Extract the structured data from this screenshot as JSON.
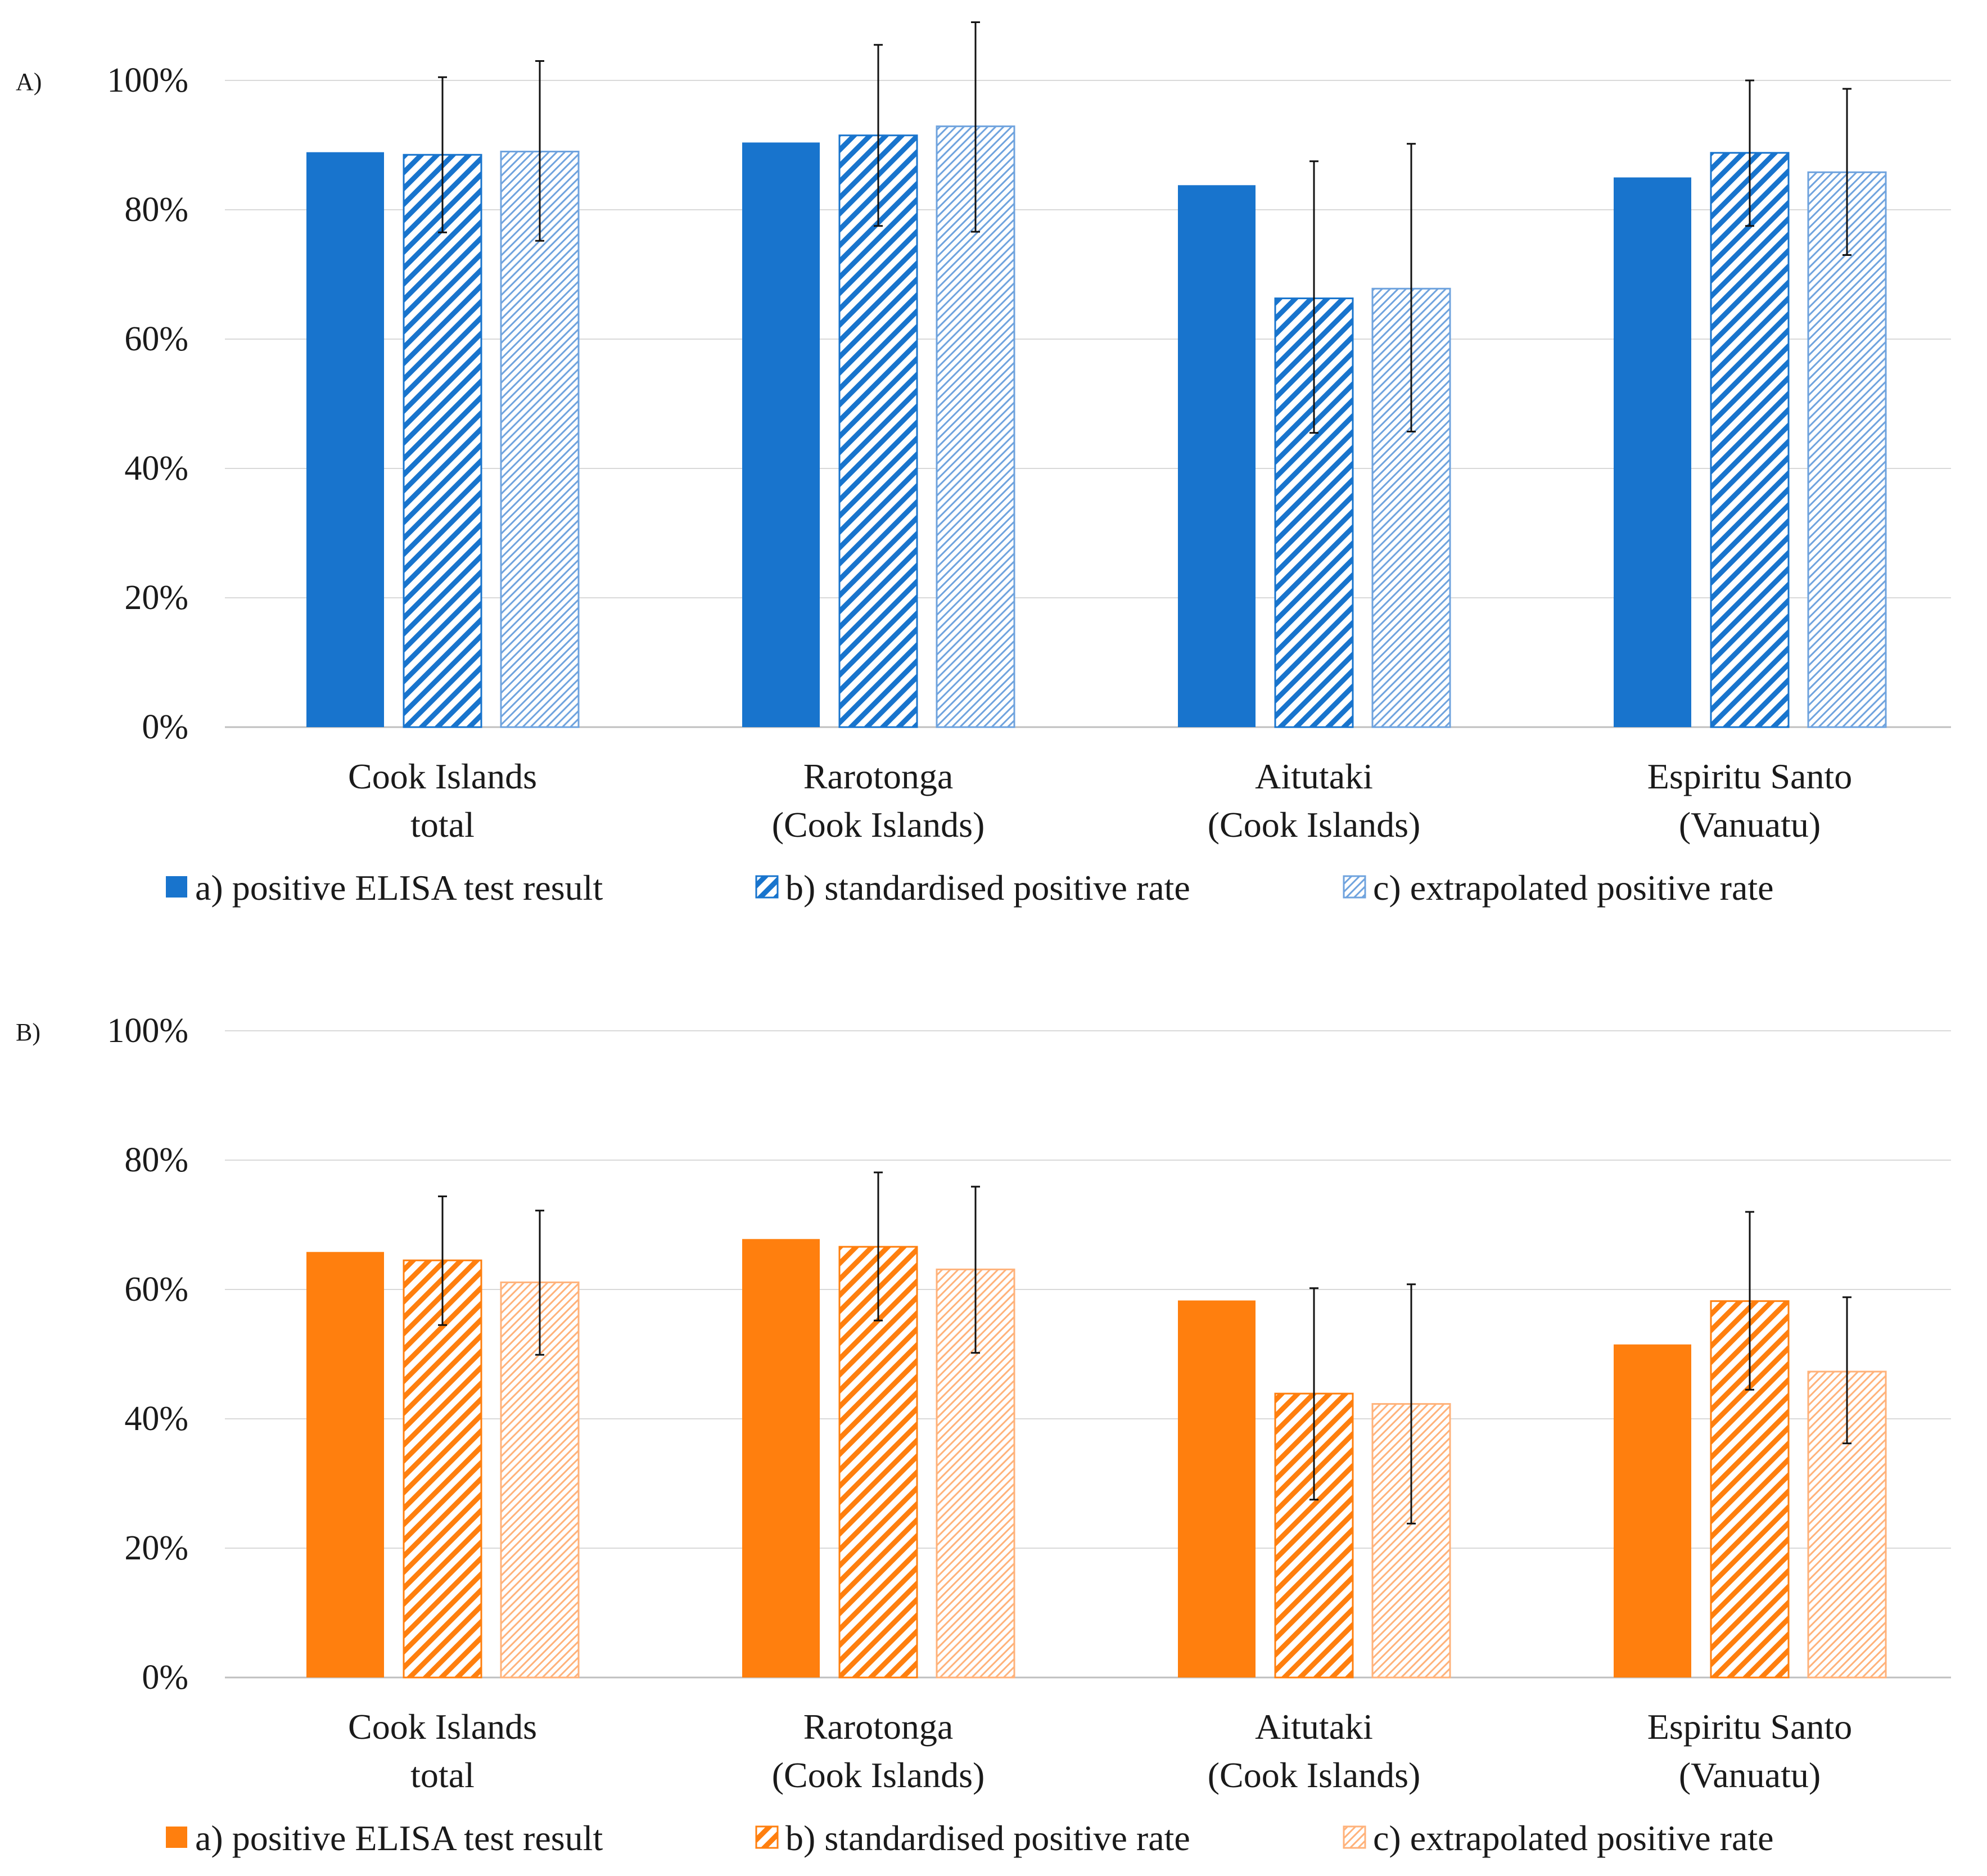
{
  "chart_data": [
    {
      "panel": "A)",
      "type": "bar",
      "title": "",
      "xlabel": "",
      "ylabel": "",
      "ylim": [
        0,
        100
      ],
      "yticks": [
        "0%",
        "20%",
        "40%",
        "60%",
        "80%",
        "100%"
      ],
      "categories": [
        [
          "Cook Islands",
          "total"
        ],
        [
          "Rarotonga",
          "(Cook Islands)"
        ],
        [
          "Aitutaki",
          "(Cook Islands)"
        ],
        [
          "Espiritu Santo",
          "(Vanuatu)"
        ]
      ],
      "series": [
        {
          "name": "a) positive ELISA test result",
          "pattern": "solid",
          "values": [
            88.9,
            90.4,
            83.8,
            85.0
          ],
          "err_low": null,
          "err_high": null
        },
        {
          "name": "b) standardised positive rate",
          "pattern": "wide-hatch",
          "values": [
            88.5,
            91.5,
            66.3,
            88.8
          ],
          "err_low": [
            76.5,
            77.5,
            45.5,
            77.5
          ],
          "err_high": [
            100.5,
            105.5,
            87.5,
            100.0
          ]
        },
        {
          "name": "c) extrapolated positive rate",
          "pattern": "fine-hatch",
          "values": [
            89.0,
            92.9,
            67.8,
            85.8
          ],
          "err_low": [
            75.2,
            76.6,
            45.7,
            73.0
          ],
          "err_high": [
            103.0,
            109.0,
            90.2,
            98.7
          ]
        }
      ],
      "colors": {
        "solid": "#1874cd",
        "hatch": "#1874cd",
        "fine": "#6fa3de"
      },
      "grid": true,
      "legend": "bottom"
    },
    {
      "panel": "B)",
      "type": "bar",
      "title": "",
      "xlabel": "",
      "ylabel": "",
      "ylim": [
        0,
        100
      ],
      "yticks": [
        "0%",
        "20%",
        "40%",
        "60%",
        "80%",
        "100%"
      ],
      "categories": [
        [
          "Cook Islands",
          "total"
        ],
        [
          "Rarotonga",
          "(Cook Islands)"
        ],
        [
          "Aitutaki",
          "(Cook Islands)"
        ],
        [
          "Espiritu Santo",
          "(Vanuatu)"
        ]
      ],
      "series": [
        {
          "name": "a) positive ELISA test result",
          "pattern": "solid",
          "values": [
            65.8,
            67.8,
            58.3,
            51.5
          ],
          "err_low": null,
          "err_high": null
        },
        {
          "name": "b) standardised positive rate",
          "pattern": "wide-hatch",
          "values": [
            64.5,
            66.6,
            43.9,
            58.2
          ],
          "err_low": [
            54.5,
            55.2,
            27.5,
            44.5
          ],
          "err_high": [
            74.4,
            78.1,
            60.2,
            72.0
          ]
        },
        {
          "name": "c) extrapolated positive rate",
          "pattern": "fine-hatch",
          "values": [
            61.1,
            63.1,
            42.3,
            47.3
          ],
          "err_low": [
            49.9,
            50.2,
            23.8,
            36.2
          ],
          "err_high": [
            72.2,
            75.9,
            60.8,
            58.8
          ]
        }
      ],
      "colors": {
        "solid": "#ff7f0e",
        "hatch": "#ff7f0e",
        "fine": "#ffb27a"
      },
      "grid": true,
      "legend": "bottom"
    }
  ]
}
